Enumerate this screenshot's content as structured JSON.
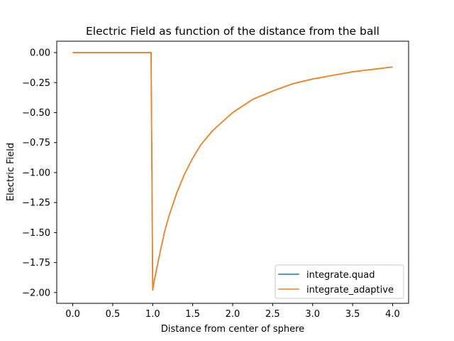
{
  "chart_data": {
    "type": "line",
    "title": "Electric Field as function of the distance from the ball",
    "xlabel": "Distance from center of sphere",
    "ylabel": "Electric Field",
    "xlim": [
      -0.2,
      4.2
    ],
    "ylim": [
      -2.09,
      0.095
    ],
    "xticks": [
      0.0,
      0.5,
      1.0,
      1.5,
      2.0,
      2.5,
      3.0,
      3.5,
      4.0
    ],
    "xtick_labels": [
      "0.0",
      "0.5",
      "1.0",
      "1.5",
      "2.0",
      "2.5",
      "3.0",
      "3.5",
      "4.0"
    ],
    "yticks": [
      0.0,
      -0.25,
      -0.5,
      -0.75,
      -1.0,
      -1.25,
      -1.5,
      -1.75,
      -2.0
    ],
    "ytick_labels": [
      "0.00",
      "−0.25",
      "−0.50",
      "−0.75",
      "−1.00",
      "−1.25",
      "−1.50",
      "−1.75",
      "−2.00"
    ],
    "grid": false,
    "legend_position": "lower-right",
    "series": [
      {
        "name": "integrate.quad",
        "color": "#1f77b4",
        "x": [
          0.0,
          0.5,
          0.98,
          1.0,
          1.02,
          1.05,
          1.1,
          1.15,
          1.2,
          1.3,
          1.4,
          1.5,
          1.6,
          1.75,
          2.0,
          2.25,
          2.5,
          2.75,
          3.0,
          3.25,
          3.5,
          3.75,
          4.0
        ],
        "y": [
          0.0,
          0.0,
          0.0,
          -1.98,
          -1.9,
          -1.8,
          -1.64,
          -1.49,
          -1.37,
          -1.17,
          -1.01,
          -0.88,
          -0.77,
          -0.65,
          -0.5,
          -0.39,
          -0.32,
          -0.26,
          -0.22,
          -0.19,
          -0.16,
          -0.14,
          -0.12
        ]
      },
      {
        "name": "integrate_adaptive",
        "color": "#ff7f0e",
        "x": [
          0.0,
          0.5,
          0.98,
          1.0,
          1.02,
          1.05,
          1.1,
          1.15,
          1.2,
          1.3,
          1.4,
          1.5,
          1.6,
          1.75,
          2.0,
          2.25,
          2.5,
          2.75,
          3.0,
          3.25,
          3.5,
          3.75,
          4.0
        ],
        "y": [
          0.0,
          0.0,
          0.0,
          -1.98,
          -1.9,
          -1.8,
          -1.64,
          -1.49,
          -1.37,
          -1.17,
          -1.01,
          -0.88,
          -0.77,
          -0.65,
          -0.5,
          -0.39,
          -0.32,
          -0.26,
          -0.22,
          -0.19,
          -0.16,
          -0.14,
          -0.12
        ]
      }
    ]
  }
}
